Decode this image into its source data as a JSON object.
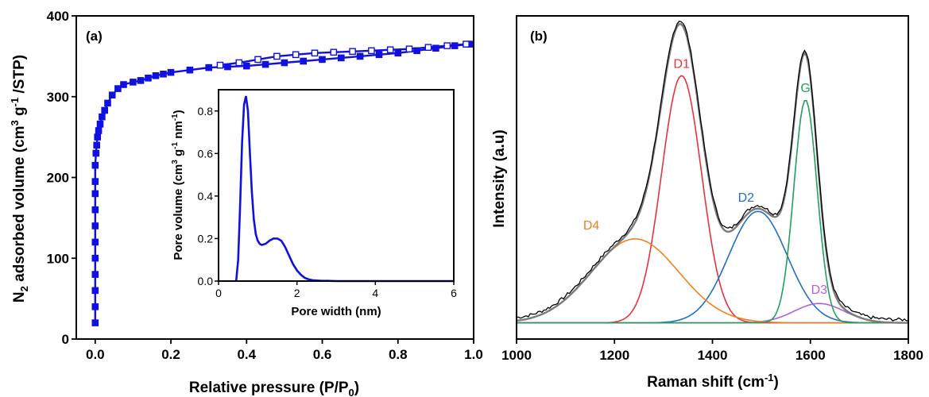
{
  "chart_data": [
    {
      "type": "scatter",
      "panel_label": "(a)",
      "xlabel": "Relative pressure (P/P",
      "xlabel_sub": "0",
      "xlabel_end": ")",
      "ylabel": {
        "pre": "N",
        "sub": "2",
        "mid": " adsorbed volume (cm",
        "sup1": "3",
        "g": " g",
        "sup2": "-1",
        "end": " /STP)"
      },
      "xlim": [
        -0.05,
        1.0
      ],
      "ylim": [
        0,
        400
      ],
      "xticks": [
        0.0,
        0.2,
        0.4,
        0.6,
        0.8,
        1.0
      ],
      "xtick_labels": [
        "0.0",
        "0.2",
        "0.4",
        "0.6",
        "0.8",
        "1.0"
      ],
      "yticks": [
        0,
        100,
        200,
        300,
        400
      ],
      "ytick_labels": [
        "0",
        "100",
        "200",
        "300",
        "400"
      ],
      "color": "#1010e0",
      "series": [
        {
          "marker": "filled-square",
          "x": [
            0.0,
            0.0,
            0.0,
            0.0,
            0.0,
            0.0,
            0.0,
            0.0,
            0.0,
            0.0,
            0.0,
            0.002,
            0.004,
            0.006,
            0.009,
            0.013,
            0.018,
            0.025,
            0.033,
            0.045,
            0.06,
            0.075,
            0.1,
            0.12,
            0.14,
            0.16,
            0.18,
            0.2,
            0.25,
            0.3,
            0.35,
            0.4,
            0.45,
            0.5,
            0.55,
            0.6,
            0.65,
            0.7,
            0.75,
            0.8,
            0.85,
            0.9,
            0.95,
            0.99
          ],
          "y": [
            20,
            40,
            60,
            80,
            100,
            120,
            140,
            160,
            180,
            195,
            215,
            230,
            240,
            250,
            258,
            266,
            275,
            283,
            292,
            302,
            310,
            315,
            318,
            320,
            323,
            326,
            328,
            330,
            333,
            336,
            337,
            338,
            340,
            342,
            344,
            346,
            348,
            350,
            352,
            354,
            357,
            360,
            363,
            365
          ]
        },
        {
          "marker": "open-square",
          "x": [
            0.33,
            0.38,
            0.43,
            0.48,
            0.53,
            0.58,
            0.63,
            0.68,
            0.73,
            0.78,
            0.83,
            0.88,
            0.93,
            0.98
          ],
          "y": [
            339,
            342,
            346,
            350,
            352,
            354,
            355,
            356,
            357,
            358,
            359,
            361,
            363,
            365
          ]
        }
      ],
      "inset": {
        "type": "line",
        "xlabel": "Pore width (nm)",
        "ylabel": {
          "pre": "Pore volume (cm",
          "sup1": "3",
          "g": " g",
          "sup2": "-1",
          "nm": " nm",
          "sup3": "-1",
          "end": ")"
        },
        "xlim": [
          0,
          6
        ],
        "ylim": [
          0,
          0.9
        ],
        "xticks": [
          0,
          2,
          4,
          6
        ],
        "xtick_labels": [
          "0",
          "2",
          "4",
          "6"
        ],
        "yticks": [
          0.0,
          0.2,
          0.4,
          0.6,
          0.8
        ],
        "ytick_labels": [
          "0.0",
          "0.2",
          "0.4",
          "0.6",
          "0.8"
        ],
        "x": [
          0.45,
          0.5,
          0.55,
          0.6,
          0.65,
          0.7,
          0.75,
          0.8,
          0.85,
          0.9,
          0.95,
          1.0,
          1.05,
          1.1,
          1.2,
          1.3,
          1.4,
          1.5,
          1.6,
          1.7,
          1.8,
          1.9,
          2.0,
          2.1,
          2.2,
          2.3,
          2.4,
          2.6,
          2.8,
          3.0,
          4.0,
          5.0,
          6.0
        ],
        "y": [
          0.0,
          0.1,
          0.35,
          0.65,
          0.83,
          0.87,
          0.8,
          0.6,
          0.42,
          0.29,
          0.22,
          0.19,
          0.175,
          0.17,
          0.175,
          0.19,
          0.2,
          0.2,
          0.19,
          0.16,
          0.12,
          0.08,
          0.05,
          0.03,
          0.015,
          0.008,
          0.004,
          0.002,
          0.001,
          0.0,
          0.0,
          0.0,
          0.0
        ]
      }
    },
    {
      "type": "line",
      "panel_label": "(b)",
      "xlabel": "Raman shift (cm",
      "xlabel_sup": "-1",
      "xlabel_end": ")",
      "ylabel": "Intensity (a.u)",
      "xlim": [
        1000,
        1800
      ],
      "ylim": [
        0,
        1.0
      ],
      "xticks": [
        1000,
        1200,
        1400,
        1600,
        1800
      ],
      "xtick_labels": [
        "1000",
        "1200",
        "1400",
        "1600",
        "1800"
      ],
      "baseline": 0.05,
      "peaks": [
        {
          "name": "D1",
          "center": 1337,
          "height": 0.765,
          "width": 48,
          "color": "#e8323c"
        },
        {
          "name": "D2",
          "center": 1493,
          "height": 0.345,
          "width": 70,
          "color": "#1f6fc8"
        },
        {
          "name": "D3",
          "center": 1618,
          "height": 0.06,
          "width": 60,
          "color": "#b060e0"
        },
        {
          "name": "D4",
          "center": 1242,
          "height": 0.26,
          "width": 105,
          "color": "#f0821e"
        },
        {
          "name": "G",
          "center": 1590,
          "height": 0.69,
          "width": 28,
          "color": "#23a05a"
        }
      ],
      "sum_color": "#7a7a7a",
      "measured_color": "#000000"
    }
  ]
}
